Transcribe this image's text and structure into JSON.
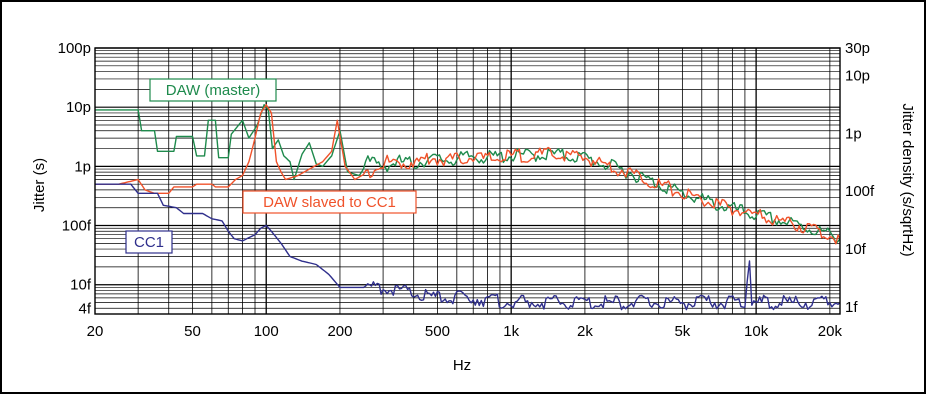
{
  "chart_data": {
    "type": "line",
    "title": "",
    "xlabel": "Hz",
    "ylabel": "Jitter (s)",
    "ylabel_right": "Jitter density (s/sqrtHz)",
    "x_scale": "log",
    "y_scale": "log",
    "xlim": [
      20,
      22000
    ],
    "ylim": [
      3.2e-15,
      1e-10
    ],
    "y_right_lim": [
      7.5e-16,
      3e-11
    ],
    "grid": true,
    "legend": "inline labels",
    "x_ticks": [
      {
        "v": 20,
        "label": "20"
      },
      {
        "v": 50,
        "label": "50"
      },
      {
        "v": 100,
        "label": "100"
      },
      {
        "v": 200,
        "label": "200"
      },
      {
        "v": 500,
        "label": "500"
      },
      {
        "v": 1000,
        "label": "1k"
      },
      {
        "v": 2000,
        "label": "2k"
      },
      {
        "v": 5000,
        "label": "5k"
      },
      {
        "v": 10000,
        "label": "10k"
      },
      {
        "v": 20000,
        "label": "20k"
      }
    ],
    "y_ticks": [
      {
        "v": 1e-10,
        "label": "100p"
      },
      {
        "v": 1e-11,
        "label": "10p"
      },
      {
        "v": 1e-12,
        "label": "1p"
      },
      {
        "v": 1e-13,
        "label": "100f"
      },
      {
        "v": 1e-14,
        "label": "10f"
      },
      {
        "v": 4e-15,
        "label": "4f"
      }
    ],
    "y_right_ticks": [
      {
        "v": 3e-11,
        "label": "30p"
      },
      {
        "v": 1e-11,
        "label": "10p"
      },
      {
        "v": 1e-12,
        "label": "1p"
      },
      {
        "v": 1e-13,
        "label": "100f"
      },
      {
        "v": 1e-14,
        "label": "10f"
      },
      {
        "v": 1e-15,
        "label": "1f"
      }
    ],
    "series": [
      {
        "name": "DAW (master)",
        "color": "#1e8a4c",
        "points": [
          [
            20,
            9e-12
          ],
          [
            30,
            9e-12
          ],
          [
            31,
            4e-12
          ],
          [
            35,
            4e-12
          ],
          [
            36,
            1.8e-12
          ],
          [
            42,
            1.8e-12
          ],
          [
            43,
            3.2e-12
          ],
          [
            50,
            3.2e-12
          ],
          [
            52,
            1.5e-12
          ],
          [
            56,
            1.5e-12
          ],
          [
            58,
            6e-12
          ],
          [
            62,
            6e-12
          ],
          [
            64,
            1.4e-12
          ],
          [
            70,
            1.4e-12
          ],
          [
            72,
            3.5e-12
          ],
          [
            80,
            6e-12
          ],
          [
            85,
            3e-12
          ],
          [
            92,
            5e-12
          ],
          [
            98,
            1.1e-11
          ],
          [
            102,
            9e-12
          ],
          [
            106,
            2e-12
          ],
          [
            112,
            2.8e-12
          ],
          [
            118,
            1.5e-12
          ],
          [
            125,
            1.2e-12
          ],
          [
            130,
            6e-13
          ],
          [
            140,
            1.6e-12
          ],
          [
            150,
            2.5e-12
          ],
          [
            160,
            1.1e-12
          ],
          [
            170,
            1e-12
          ],
          [
            185,
            1.5e-12
          ],
          [
            200,
            4e-12
          ],
          [
            215,
            8e-13
          ],
          [
            240,
            7e-13
          ],
          [
            260,
            1.2e-12
          ],
          [
            300,
            1e-12
          ],
          [
            350,
            1.2e-12
          ],
          [
            400,
            1.1e-12
          ],
          [
            450,
            1.3e-12
          ],
          [
            500,
            1.3e-12
          ],
          [
            600,
            1.3e-12
          ],
          [
            700,
            1.5e-12
          ],
          [
            800,
            1.4e-12
          ],
          [
            1000,
            1.5e-12
          ],
          [
            1500,
            1.6e-12
          ],
          [
            2000,
            1.4e-12
          ],
          [
            3000,
            8e-13
          ],
          [
            4000,
            5e-13
          ],
          [
            5000,
            3.5e-13
          ],
          [
            7000,
            2.2e-13
          ],
          [
            10000,
            1.5e-13
          ],
          [
            15000,
            1e-13
          ],
          [
            20000,
            7e-14
          ],
          [
            22000,
            6e-14
          ]
        ]
      },
      {
        "name": "DAW slaved to CC1",
        "color": "#f0522a",
        "points": [
          [
            20,
            5e-13
          ],
          [
            25,
            5e-13
          ],
          [
            30,
            6e-13
          ],
          [
            32,
            4e-13
          ],
          [
            35,
            3.5e-13
          ],
          [
            40,
            3.5e-13
          ],
          [
            42,
            4.5e-13
          ],
          [
            50,
            4.5e-13
          ],
          [
            52,
            5e-13
          ],
          [
            60,
            5e-13
          ],
          [
            62,
            4.5e-13
          ],
          [
            70,
            4.5e-13
          ],
          [
            75,
            6e-13
          ],
          [
            80,
            7e-13
          ],
          [
            85,
            1.2e-12
          ],
          [
            90,
            3e-12
          ],
          [
            95,
            8e-12
          ],
          [
            100,
            1.1e-11
          ],
          [
            105,
            8e-12
          ],
          [
            110,
            1.2e-12
          ],
          [
            115,
            8e-13
          ],
          [
            120,
            6e-13
          ],
          [
            135,
            7e-13
          ],
          [
            150,
            9e-13
          ],
          [
            170,
            1.2e-12
          ],
          [
            185,
            1.8e-12
          ],
          [
            195,
            6e-12
          ],
          [
            210,
            1e-12
          ],
          [
            230,
            6e-13
          ],
          [
            260,
            8e-13
          ],
          [
            300,
            1.2e-12
          ],
          [
            350,
            1.1e-12
          ],
          [
            420,
            1.2e-12
          ],
          [
            470,
            1.4e-12
          ],
          [
            520,
            1.3e-12
          ],
          [
            600,
            1.3e-12
          ],
          [
            700,
            1.5e-12
          ],
          [
            800,
            1.3e-12
          ],
          [
            1000,
            1.5e-12
          ],
          [
            1500,
            1.6e-12
          ],
          [
            2000,
            1.4e-12
          ],
          [
            3000,
            8e-13
          ],
          [
            4000,
            5e-13
          ],
          [
            5000,
            3.5e-13
          ],
          [
            7000,
            2.2e-13
          ],
          [
            10000,
            1.5e-13
          ],
          [
            15000,
            1e-13
          ],
          [
            20000,
            7e-14
          ],
          [
            22000,
            6e-14
          ]
        ]
      },
      {
        "name": "CC1",
        "color": "#2f2f8c",
        "points": [
          [
            20,
            5e-13
          ],
          [
            28,
            5e-13
          ],
          [
            30,
            3.5e-13
          ],
          [
            36,
            3.5e-13
          ],
          [
            38,
            2.2e-13
          ],
          [
            43,
            2e-13
          ],
          [
            46,
            1.6e-13
          ],
          [
            55,
            1.6e-13
          ],
          [
            60,
            1.3e-13
          ],
          [
            66,
            1.2e-13
          ],
          [
            70,
            8e-14
          ],
          [
            74,
            6e-14
          ],
          [
            80,
            5.5e-14
          ],
          [
            90,
            7e-14
          ],
          [
            95,
            9e-14
          ],
          [
            100,
            1e-13
          ],
          [
            105,
            8e-14
          ],
          [
            115,
            5e-14
          ],
          [
            125,
            3e-14
          ],
          [
            140,
            2.5e-14
          ],
          [
            160,
            2.2e-14
          ],
          [
            180,
            1.5e-14
          ],
          [
            200,
            9e-15
          ],
          [
            250,
            9e-15
          ],
          [
            300,
            9e-15
          ],
          [
            350,
            8e-15
          ],
          [
            400,
            7e-15
          ],
          [
            500,
            6e-15
          ],
          [
            600,
            6e-15
          ],
          [
            700,
            6e-15
          ],
          [
            800,
            5.5e-15
          ],
          [
            1000,
            5e-15
          ],
          [
            2000,
            5e-15
          ],
          [
            5000,
            5e-15
          ],
          [
            9000,
            5e-15
          ],
          [
            9400,
            3e-14
          ],
          [
            9600,
            5e-15
          ],
          [
            12000,
            5e-15
          ],
          [
            22000,
            5e-15
          ]
        ]
      }
    ],
    "annotations": [
      {
        "text": "DAW (master)",
        "series": 0
      },
      {
        "text": "DAW slaved to CC1",
        "series": 1
      },
      {
        "text": "CC1",
        "series": 2
      }
    ]
  }
}
